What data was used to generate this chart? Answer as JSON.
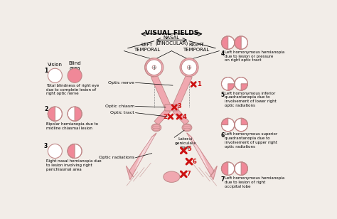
{
  "bg_color": "#f2ede8",
  "pink": "#f08898",
  "light_pink": "#f0a8b0",
  "outline": "#c08888",
  "red": "#cc1111",
  "title": "VISUAL FIELDS",
  "nasal": "NASAL\n(BINOCULAR)",
  "left_temporal": "LEFT\nTEMPORAL",
  "right_temporal": "RIGHT\nTEMPORAL",
  "optic_nerve": "Optic nerve",
  "optic_chiasm": "Optic chiasm",
  "optic_tract": "Optic tract",
  "lateral_gen": "Lateral\ngeniculate\nbody",
  "optic_rad": "Optic radiations",
  "header_vision": "Vision",
  "header_blind": "Blind\narea",
  "txt1": "Total blindness of right eye\ndue to complete lesion of\nright optic nerve",
  "txt2": "Bipolar hemianopia due to\nmidline chiasmal lesion",
  "txt3": "Right nasal hemianopia due\nto lesion involving right\nperichiasmal area",
  "txt4": "Left homonymous hemianopia\ndue to lesion or pressure\non right optic tract",
  "txt5": "Left homonymous inferior\nquadrantanopia due to\ninvolvement of lower right\noptic radiations",
  "txt6": "Left homonymous superior\nquadrantanopia due to\ninvolvement of upper right\noptic radiations",
  "txt7": "Left homonymous hemianopia\ndue to lesion of right\noccipital lobe"
}
